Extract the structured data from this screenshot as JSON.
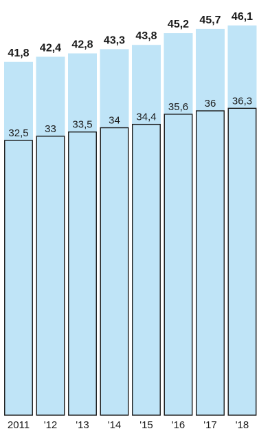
{
  "chart_data": {
    "type": "bar",
    "categories": [
      "2011",
      "'12",
      "'13",
      "'14",
      "'15",
      "'16",
      "'17",
      "'18"
    ],
    "series": [
      {
        "values": [
          41.8,
          42.4,
          42.8,
          43.3,
          43.8,
          45.2,
          45.7,
          46.1
        ],
        "labels": [
          "41,8",
          "42,4",
          "42,8",
          "43,3",
          "43,8",
          "45,2",
          "45,7",
          "46,1"
        ]
      },
      {
        "values": [
          32.5,
          33,
          33.5,
          34,
          34.4,
          35.6,
          36,
          36.3
        ],
        "labels": [
          "32,5",
          "33",
          "33,5",
          "34",
          "34,4",
          "35,6",
          "36",
          "36,3"
        ]
      }
    ],
    "title": "",
    "xlabel": "",
    "ylabel": "",
    "ylim": [
      0,
      46.1
    ],
    "grid": false,
    "legend": "none",
    "colors": {
      "outer_fill": "#bfe4f7",
      "inner_fill": "#bfe4f7",
      "inner_stroke": "#1a1a1a",
      "text": "#1a1a1a"
    }
  }
}
